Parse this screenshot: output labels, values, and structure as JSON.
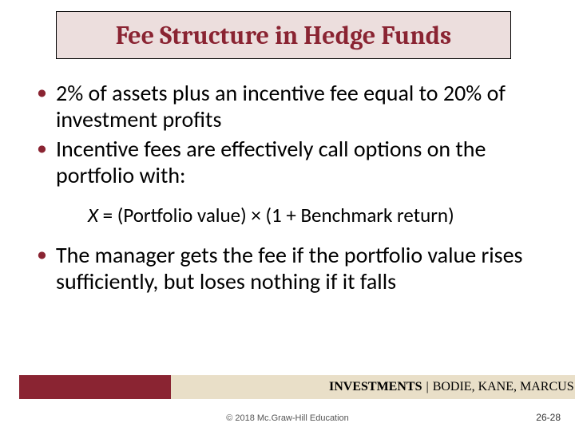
{
  "colors": {
    "title_border": "#000000",
    "title_bg": "#ecdedd",
    "title_text": "#8a2432",
    "bullet_color": "#8a2432",
    "body_text": "#000000",
    "footer_maroon": "#8a2432",
    "footer_beige": "#e9dfc8",
    "footer_text": "#000000",
    "copyright_text": "#555555",
    "pagenum_text": "#333333"
  },
  "title": "Fee Structure in Hedge Funds",
  "bullets": [
    "2% of assets plus an incentive fee equal to 20% of investment profits",
    "Incentive fees are effectively call options on the portfolio with:"
  ],
  "formula": {
    "var": "X",
    "expr": " = (Portfolio value) × (1 + Benchmark return)"
  },
  "bullets_after": [
    "The manager gets the fee if the portfolio value rises sufficiently, but loses nothing if it falls"
  ],
  "footer": {
    "investments": "INVESTMENTS",
    "separator": "|",
    "authors": "BODIE, KANE, MARCUS"
  },
  "copyright": "© 2018 Mc.Graw-Hill Education",
  "pagenum": "26-28"
}
